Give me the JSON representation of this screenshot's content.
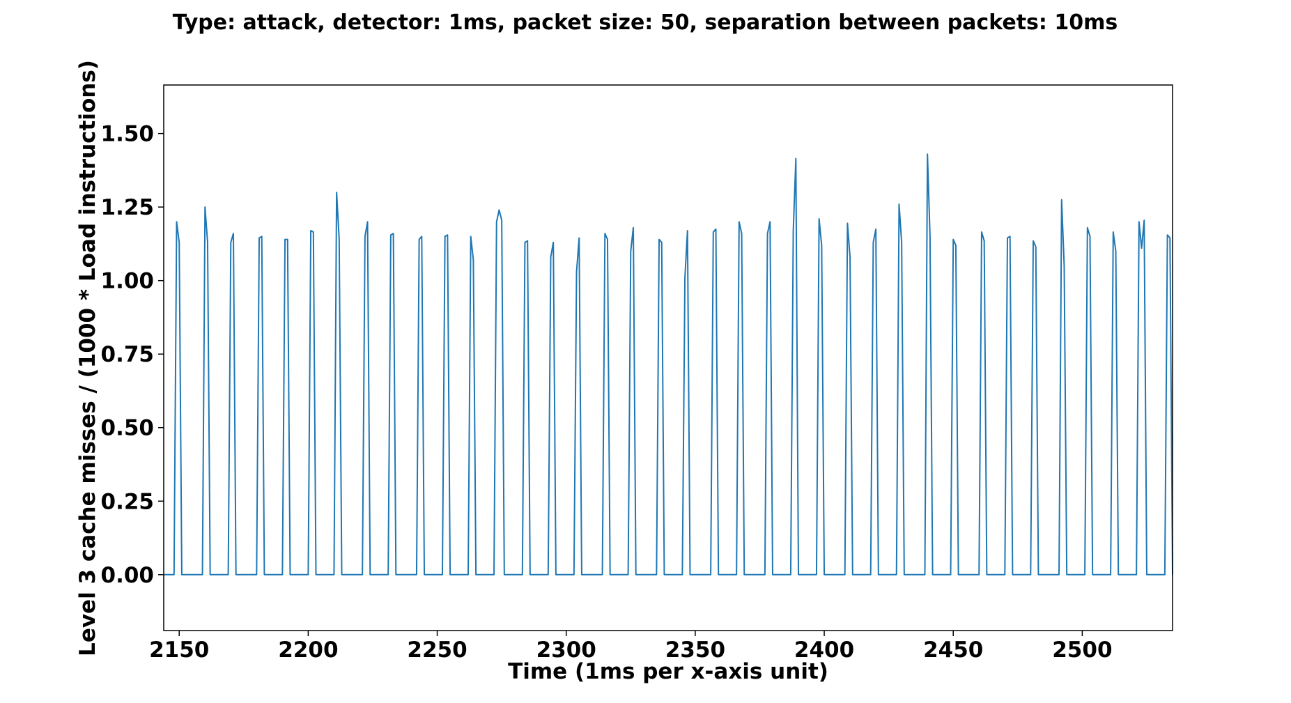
{
  "chart_data": {
    "type": "line",
    "title": "Type: attack,   detector: 1ms,   packet size: 50,   separation between packets: 10ms",
    "xlabel": "Time (1ms per x-axis unit)",
    "ylabel": "Level 3 cache misses / (1000 * Load instructions)",
    "color": "#1f77b4",
    "xlim": [
      2144,
      2535
    ],
    "ylim": [
      -0.19,
      1.665
    ],
    "xticks": [
      2150,
      2200,
      2250,
      2300,
      2350,
      2400,
      2450,
      2500
    ],
    "yticks": [
      {
        "value": 0,
        "label": "0.00"
      },
      {
        "value": 0.25,
        "label": "0.25"
      },
      {
        "value": 0.5,
        "label": "0.50"
      },
      {
        "value": 0.75,
        "label": "0.75"
      },
      {
        "value": 1,
        "label": "1.00"
      },
      {
        "value": 1.25,
        "label": "1.25"
      },
      {
        "value": 1.5,
        "label": "1.50"
      }
    ],
    "x": [
      2144,
      2148,
      2149,
      2150,
      2151,
      2159,
      2160,
      2161,
      2162,
      2169,
      2170,
      2171,
      2172,
      2180,
      2181,
      2182,
      2183,
      2190,
      2191,
      2192,
      2193,
      2200,
      2201,
      2202,
      2203,
      2210,
      2211,
      2212,
      2213,
      2221,
      2222,
      2223,
      2224,
      2231,
      2232,
      2233,
      2234,
      2242,
      2243,
      2244,
      2245,
      2252,
      2253,
      2254,
      2255,
      2262,
      2263,
      2264,
      2265,
      2272,
      2273,
      2274,
      2275,
      2276,
      2283,
      2284,
      2285,
      2286,
      2293,
      2294,
      2295,
      2296,
      2303,
      2304,
      2305,
      2306,
      2314,
      2315,
      2316,
      2317,
      2324,
      2325,
      2326,
      2327,
      2335,
      2336,
      2337,
      2338,
      2345,
      2346,
      2347,
      2348,
      2356,
      2357,
      2358,
      2359,
      2366,
      2367,
      2368,
      2369,
      2377,
      2378,
      2379,
      2380,
      2387,
      2388,
      2389,
      2390,
      2397,
      2398,
      2399,
      2400,
      2408,
      2409,
      2410,
      2411,
      2418,
      2419,
      2420,
      2421,
      2428,
      2429,
      2430,
      2431,
      2439,
      2440,
      2441,
      2442,
      2449,
      2450,
      2451,
      2452,
      2460,
      2461,
      2462,
      2463,
      2470,
      2471,
      2472,
      2473,
      2480,
      2481,
      2482,
      2483,
      2491,
      2492,
      2493,
      2494,
      2501,
      2502,
      2503,
      2504,
      2511,
      2512,
      2513,
      2514,
      2521,
      2522,
      2523,
      2524,
      2525,
      2532,
      2533,
      2534,
      2535
    ],
    "values": [
      0,
      0,
      1.2,
      1.13,
      0,
      0,
      1.25,
      1.13,
      0,
      0,
      1.13,
      1.16,
      0,
      0,
      1.145,
      1.15,
      0,
      0,
      1.14,
      1.14,
      0,
      0,
      1.17,
      1.165,
      0,
      0,
      1.3,
      1.14,
      0,
      0,
      1.15,
      1.2,
      0,
      0,
      1.155,
      1.16,
      0,
      0,
      1.14,
      1.15,
      0,
      0,
      1.15,
      1.155,
      0,
      0,
      1.15,
      1.07,
      0,
      0,
      1.2,
      1.24,
      1.205,
      0,
      0,
      1.13,
      1.135,
      0,
      0,
      1.08,
      1.13,
      0,
      0,
      1.03,
      1.145,
      0,
      0,
      1.16,
      1.14,
      0,
      0,
      1.1,
      1.18,
      0,
      0,
      1.14,
      1.13,
      0,
      0,
      1.01,
      1.17,
      0,
      0,
      1.165,
      1.175,
      0,
      0,
      1.2,
      1.16,
      0,
      0,
      1.16,
      1.2,
      0,
      0,
      1.17,
      1.415,
      0,
      0,
      1.21,
      1.12,
      0,
      0,
      1.195,
      1.08,
      0,
      0,
      1.13,
      1.175,
      0,
      0,
      1.26,
      1.13,
      0,
      0,
      1.43,
      1.15,
      0,
      0,
      1.14,
      1.12,
      0,
      0,
      1.165,
      1.135,
      0,
      0,
      1.145,
      1.15,
      0,
      0,
      1.135,
      1.115,
      0,
      0,
      1.275,
      1.05,
      0,
      0,
      1.18,
      1.15,
      0,
      0,
      1.165,
      1.1,
      0,
      0,
      1.2,
      1.11,
      1.205,
      0,
      0,
      1.155,
      1.145,
      0
    ]
  }
}
